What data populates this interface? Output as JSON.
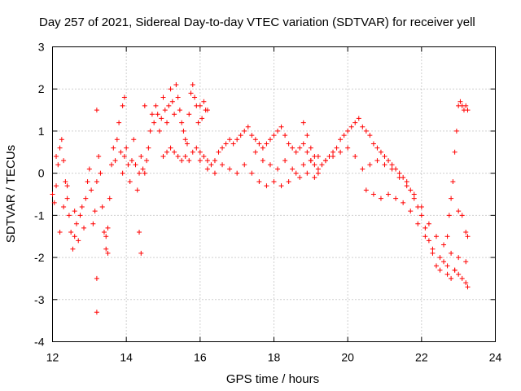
{
  "chart_data": {
    "type": "scatter",
    "title": "Day 257 of 2021, Sidereal Day-to-day VTEC variation (SDTVAR) for receiver yell",
    "xlabel": "GPS time / hours",
    "ylabel": "SDTVAR / TECUs",
    "xlim": [
      12,
      24
    ],
    "ylim": [
      -4,
      3
    ],
    "xticks": [
      12,
      14,
      16,
      18,
      20,
      22,
      24
    ],
    "yticks": [
      -4,
      -3,
      -2,
      -1,
      0,
      1,
      2,
      3
    ],
    "xtick_labels": [
      "12",
      "14",
      "16",
      "18",
      "20",
      "22",
      "24"
    ],
    "ytick_labels": [
      "-4",
      "-3",
      "-2",
      "-1",
      "0",
      "1",
      "2",
      "3"
    ],
    "grid": true,
    "marker": "+",
    "color": "#ff0000",
    "series": [
      {
        "name": "SDTVAR",
        "points": [
          [
            12.0,
            -0.5
          ],
          [
            12.05,
            -0.7
          ],
          [
            12.1,
            -0.3
          ],
          [
            12.15,
            0.2
          ],
          [
            12.2,
            0.6
          ],
          [
            12.25,
            0.8
          ],
          [
            12.3,
            0.3
          ],
          [
            12.35,
            -0.2
          ],
          [
            12.4,
            -0.6
          ],
          [
            12.45,
            -1.0
          ],
          [
            12.5,
            -1.4
          ],
          [
            12.55,
            -1.8
          ],
          [
            12.6,
            -1.5
          ],
          [
            12.65,
            -1.2
          ],
          [
            12.7,
            -1.6
          ],
          [
            12.75,
            -1.0
          ],
          [
            12.8,
            -0.8
          ],
          [
            12.85,
            -1.3
          ],
          [
            12.9,
            -0.6
          ],
          [
            12.95,
            -0.2
          ],
          [
            13.0,
            0.1
          ],
          [
            13.05,
            -0.4
          ],
          [
            13.1,
            -1.2
          ],
          [
            13.15,
            -0.9
          ],
          [
            13.2,
            -0.2
          ],
          [
            13.25,
            0.4
          ],
          [
            13.3,
            0.0
          ],
          [
            13.35,
            -0.8
          ],
          [
            13.4,
            -1.4
          ],
          [
            13.45,
            -1.8
          ],
          [
            13.5,
            -1.3
          ],
          [
            13.55,
            -0.6
          ],
          [
            13.6,
            0.2
          ],
          [
            13.65,
            0.6
          ],
          [
            13.7,
            0.3
          ],
          [
            13.75,
            0.8
          ],
          [
            13.8,
            1.2
          ],
          [
            13.85,
            0.5
          ],
          [
            13.9,
            0.0
          ],
          [
            13.95,
            0.4
          ],
          [
            14.0,
            0.6
          ],
          [
            14.05,
            0.2
          ],
          [
            14.1,
            -0.2
          ],
          [
            14.15,
            0.3
          ],
          [
            14.2,
            0.8
          ],
          [
            14.25,
            0.2
          ],
          [
            14.3,
            -0.4
          ],
          [
            14.35,
            0.0
          ],
          [
            14.4,
            0.4
          ],
          [
            14.45,
            0.1
          ],
          [
            14.5,
            0.0
          ],
          [
            14.55,
            0.3
          ],
          [
            14.6,
            0.6
          ],
          [
            14.65,
            1.0
          ],
          [
            14.7,
            1.4
          ],
          [
            14.75,
            1.2
          ],
          [
            14.8,
            1.6
          ],
          [
            14.85,
            1.4
          ],
          [
            14.9,
            1.0
          ],
          [
            14.95,
            1.3
          ],
          [
            15.0,
            1.8
          ],
          [
            15.05,
            1.5
          ],
          [
            15.1,
            1.2
          ],
          [
            15.15,
            1.6
          ],
          [
            15.2,
            2.0
          ],
          [
            15.25,
            1.7
          ],
          [
            15.3,
            1.4
          ],
          [
            15.35,
            2.1
          ],
          [
            15.4,
            1.8
          ],
          [
            15.45,
            1.5
          ],
          [
            15.5,
            1.2
          ],
          [
            15.55,
            1.0
          ],
          [
            15.6,
            0.8
          ],
          [
            15.65,
            0.7
          ],
          [
            15.7,
            1.4
          ],
          [
            15.75,
            1.9
          ],
          [
            15.8,
            2.1
          ],
          [
            15.85,
            1.8
          ],
          [
            15.9,
            1.6
          ],
          [
            15.95,
            1.2
          ],
          [
            16.0,
            1.6
          ],
          [
            16.05,
            1.3
          ],
          [
            16.1,
            1.7
          ],
          [
            16.15,
            1.5
          ],
          [
            16.2,
            1.5
          ],
          [
            12.1,
            0.4
          ],
          [
            12.2,
            -1.4
          ],
          [
            12.3,
            -0.8
          ],
          [
            12.4,
            -0.3
          ],
          [
            12.6,
            -0.9
          ],
          [
            13.2,
            1.5
          ],
          [
            13.2,
            -2.5
          ],
          [
            13.2,
            -3.3
          ],
          [
            13.45,
            -1.5
          ],
          [
            13.5,
            -1.9
          ],
          [
            14.4,
            -1.9
          ],
          [
            14.35,
            -1.4
          ],
          [
            13.9,
            1.6
          ],
          [
            13.95,
            1.8
          ],
          [
            14.5,
            1.6
          ],
          [
            15.0,
            0.4
          ],
          [
            15.1,
            0.5
          ],
          [
            15.2,
            0.6
          ],
          [
            15.3,
            0.5
          ],
          [
            15.4,
            0.4
          ],
          [
            15.5,
            0.3
          ],
          [
            15.6,
            0.4
          ],
          [
            15.7,
            0.3
          ],
          [
            15.8,
            0.5
          ],
          [
            15.9,
            0.6
          ],
          [
            16.0,
            0.5
          ],
          [
            16.1,
            0.4
          ],
          [
            16.2,
            0.3
          ],
          [
            16.3,
            0.2
          ],
          [
            16.4,
            0.3
          ],
          [
            16.5,
            0.5
          ],
          [
            16.6,
            0.6
          ],
          [
            16.7,
            0.7
          ],
          [
            16.8,
            0.8
          ],
          [
            16.9,
            0.7
          ],
          [
            17.0,
            0.8
          ],
          [
            17.1,
            0.9
          ],
          [
            17.2,
            1.0
          ],
          [
            17.3,
            1.1
          ],
          [
            17.4,
            0.9
          ],
          [
            17.5,
            0.8
          ],
          [
            17.6,
            0.7
          ],
          [
            17.7,
            0.6
          ],
          [
            17.8,
            0.7
          ],
          [
            17.9,
            0.8
          ],
          [
            18.0,
            0.9
          ],
          [
            18.1,
            1.0
          ],
          [
            18.2,
            1.1
          ],
          [
            18.3,
            0.9
          ],
          [
            18.4,
            0.7
          ],
          [
            18.5,
            0.6
          ],
          [
            18.6,
            0.5
          ],
          [
            18.7,
            0.6
          ],
          [
            18.8,
            0.7
          ],
          [
            18.9,
            0.5
          ],
          [
            19.0,
            0.3
          ],
          [
            19.1,
            0.2
          ],
          [
            19.2,
            0.1
          ],
          [
            19.3,
            0.2
          ],
          [
            19.4,
            0.3
          ],
          [
            19.5,
            0.4
          ],
          [
            19.6,
            0.5
          ],
          [
            19.7,
            0.6
          ],
          [
            19.8,
            0.8
          ],
          [
            19.9,
            0.9
          ],
          [
            20.0,
            1.0
          ],
          [
            20.1,
            1.1
          ],
          [
            20.2,
            1.2
          ],
          [
            20.3,
            1.3
          ],
          [
            20.4,
            1.1
          ],
          [
            20.5,
            1.0
          ],
          [
            20.6,
            0.9
          ],
          [
            20.7,
            0.7
          ],
          [
            20.8,
            0.6
          ],
          [
            20.9,
            0.5
          ],
          [
            21.0,
            0.4
          ],
          [
            21.1,
            0.3
          ],
          [
            21.2,
            0.2
          ],
          [
            21.3,
            0.1
          ],
          [
            21.4,
            0.0
          ],
          [
            21.5,
            -0.1
          ],
          [
            21.6,
            -0.2
          ],
          [
            21.7,
            -0.4
          ],
          [
            21.8,
            -0.6
          ],
          [
            21.9,
            -0.8
          ],
          [
            22.0,
            -1.0
          ],
          [
            22.1,
            -1.3
          ],
          [
            22.2,
            -1.6
          ],
          [
            22.3,
            -1.9
          ],
          [
            22.4,
            -2.2
          ],
          [
            22.5,
            -2.3
          ],
          [
            22.6,
            -2.1
          ],
          [
            22.7,
            -2.4
          ],
          [
            22.8,
            -2.5
          ],
          [
            22.9,
            -2.3
          ],
          [
            23.0,
            -2.4
          ],
          [
            23.1,
            -2.5
          ],
          [
            23.2,
            -2.6
          ],
          [
            23.25,
            -2.7
          ],
          [
            16.0,
            0.3
          ],
          [
            16.2,
            0.1
          ],
          [
            16.4,
            0.0
          ],
          [
            16.6,
            0.2
          ],
          [
            16.8,
            0.1
          ],
          [
            17.0,
            0.0
          ],
          [
            17.2,
            0.2
          ],
          [
            17.4,
            0.0
          ],
          [
            17.6,
            -0.2
          ],
          [
            17.8,
            -0.3
          ],
          [
            18.0,
            -0.2
          ],
          [
            18.2,
            -0.3
          ],
          [
            18.4,
            -0.2
          ],
          [
            18.6,
            0.0
          ],
          [
            18.8,
            0.2
          ],
          [
            19.0,
            0.3
          ],
          [
            19.2,
            0.4
          ],
          [
            19.4,
            0.3
          ],
          [
            19.6,
            0.4
          ],
          [
            19.8,
            0.5
          ],
          [
            20.0,
            0.6
          ],
          [
            20.2,
            0.4
          ],
          [
            20.4,
            0.1
          ],
          [
            20.6,
            0.2
          ],
          [
            20.8,
            0.3
          ],
          [
            21.0,
            0.2
          ],
          [
            21.2,
            0.1
          ],
          [
            21.4,
            -0.1
          ],
          [
            21.6,
            -0.3
          ],
          [
            21.8,
            -0.5
          ],
          [
            22.0,
            -0.8
          ],
          [
            22.2,
            -1.2
          ],
          [
            22.4,
            -1.5
          ],
          [
            22.6,
            -1.7
          ],
          [
            22.8,
            -1.9
          ],
          [
            23.0,
            -2.0
          ],
          [
            23.2,
            -2.1
          ],
          [
            20.5,
            -0.4
          ],
          [
            20.7,
            -0.5
          ],
          [
            20.9,
            -0.6
          ],
          [
            21.1,
            -0.5
          ],
          [
            21.3,
            -0.6
          ],
          [
            21.5,
            -0.7
          ],
          [
            21.7,
            -0.9
          ],
          [
            21.9,
            -1.2
          ],
          [
            22.1,
            -1.5
          ],
          [
            22.3,
            -1.8
          ],
          [
            22.5,
            -2.0
          ],
          [
            22.7,
            -2.2
          ],
          [
            22.9,
            -2.3
          ],
          [
            17.5,
            0.5
          ],
          [
            17.7,
            0.3
          ],
          [
            17.9,
            0.2
          ],
          [
            18.1,
            0.1
          ],
          [
            18.3,
            0.3
          ],
          [
            18.5,
            0.1
          ],
          [
            18.7,
            -0.1
          ],
          [
            18.9,
            0.0
          ],
          [
            19.1,
            -0.1
          ],
          [
            22.7,
            -1.5
          ],
          [
            22.75,
            -1.0
          ],
          [
            22.8,
            -0.6
          ],
          [
            22.85,
            -0.2
          ],
          [
            22.9,
            0.5
          ],
          [
            22.95,
            1.0
          ],
          [
            23.0,
            1.6
          ],
          [
            23.05,
            1.7
          ],
          [
            23.1,
            1.6
          ],
          [
            23.15,
            1.5
          ],
          [
            23.2,
            1.6
          ],
          [
            23.25,
            1.5
          ],
          [
            23.0,
            -0.9
          ],
          [
            23.1,
            -1.0
          ],
          [
            23.2,
            -1.4
          ],
          [
            23.25,
            -1.5
          ],
          [
            18.8,
            1.2
          ],
          [
            18.9,
            0.9
          ],
          [
            19.0,
            0.6
          ],
          [
            19.1,
            0.4
          ],
          [
            19.2,
            0.0
          ]
        ]
      }
    ]
  }
}
